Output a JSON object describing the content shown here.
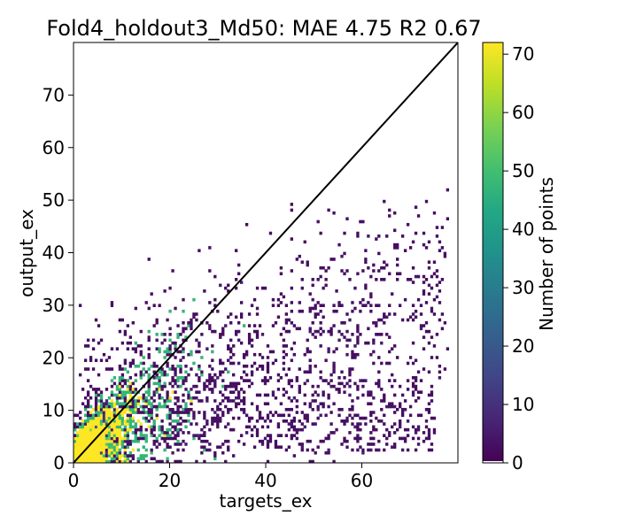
{
  "chart_data": {
    "type": "heatmap",
    "title": "Fold4_holdout3_Md50: MAE 4.75 R2 0.67",
    "xlabel": "targets_ex",
    "ylabel": "output_ex",
    "xlim": [
      0,
      80
    ],
    "ylim": [
      0,
      80
    ],
    "xticks": [
      "0",
      "20",
      "40",
      "60"
    ],
    "yticks": [
      "0",
      "10",
      "20",
      "30",
      "40",
      "50",
      "60",
      "70"
    ],
    "grid": false,
    "reference_line": {
      "label": "y = x",
      "from": [
        0,
        0
      ],
      "to": [
        80,
        80
      ],
      "color": "#000000"
    },
    "colorbar": {
      "label": "Number of points",
      "range": [
        0,
        72
      ],
      "ticks": [
        "0",
        "10",
        "20",
        "30",
        "40",
        "50",
        "60",
        "70"
      ],
      "colormap": "viridis",
      "zero_color": "#ffffff"
    },
    "density_core": {
      "description": "2D histogram of predicted vs target; densest near origin, main mass roughly x 0-35, y 0-30",
      "peak_x": 2,
      "peak_y": 2,
      "peak_count": 72
    }
  }
}
